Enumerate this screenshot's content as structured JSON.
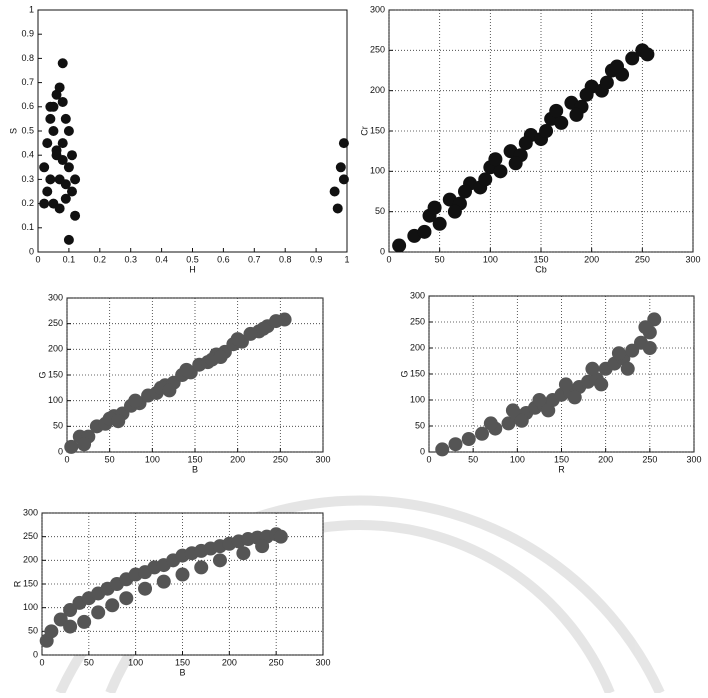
{
  "chart_data": [
    {
      "type": "scatter",
      "xlabel": "H",
      "ylabel": "S",
      "xlim": [
        0,
        1
      ],
      "ylim": [
        0,
        1
      ],
      "xticks": [
        0,
        0.1,
        0.2,
        0.3,
        0.4,
        0.5,
        0.6,
        0.7,
        0.8,
        0.9,
        1
      ],
      "yticks": [
        0,
        0.1,
        0.2,
        0.3,
        0.4,
        0.5,
        0.6,
        0.7,
        0.8,
        0.9,
        1
      ],
      "grid": false,
      "series": [
        {
          "color": "#111111",
          "x": [
            0.02,
            0.03,
            0.04,
            0.05,
            0.06,
            0.07,
            0.08,
            0.09,
            0.1,
            0.11,
            0.12,
            0.03,
            0.05,
            0.07,
            0.09,
            0.11,
            0.04,
            0.06,
            0.08,
            0.1,
            0.05,
            0.07,
            0.09,
            0.08,
            0.1,
            0.96,
            0.98,
            0.99,
            0.97,
            0.99,
            0.06,
            0.04,
            0.08,
            0.02,
            0.12
          ],
          "values": [
            0.35,
            0.45,
            0.55,
            0.6,
            0.65,
            0.68,
            0.62,
            0.55,
            0.5,
            0.4,
            0.3,
            0.25,
            0.2,
            0.18,
            0.22,
            0.25,
            0.3,
            0.4,
            0.45,
            0.35,
            0.5,
            0.3,
            0.28,
            0.78,
            0.05,
            0.25,
            0.35,
            0.45,
            0.18,
            0.3,
            0.42,
            0.6,
            0.38,
            0.2,
            0.15
          ]
        }
      ]
    },
    {
      "type": "scatter",
      "xlabel": "Cb",
      "ylabel": "Cr",
      "xlim": [
        0,
        300
      ],
      "ylim": [
        0,
        300
      ],
      "xticks": [
        0,
        50,
        100,
        150,
        200,
        250,
        300
      ],
      "yticks": [
        0,
        50,
        100,
        150,
        200,
        250,
        300
      ],
      "grid": true,
      "series": [
        {
          "color": "#111111",
          "x": [
            10,
            25,
            40,
            50,
            60,
            70,
            80,
            90,
            100,
            110,
            120,
            130,
            140,
            150,
            160,
            170,
            180,
            190,
            200,
            210,
            220,
            230,
            240,
            250,
            255,
            35,
            45,
            75,
            105,
            135,
            165,
            195,
            225,
            65,
            95,
            125,
            155,
            185,
            215
          ],
          "values": [
            8,
            20,
            45,
            35,
            65,
            60,
            85,
            80,
            105,
            100,
            125,
            120,
            145,
            140,
            165,
            160,
            185,
            180,
            205,
            200,
            225,
            220,
            240,
            250,
            245,
            25,
            55,
            75,
            115,
            135,
            175,
            195,
            230,
            50,
            90,
            110,
            150,
            170,
            210
          ]
        }
      ]
    },
    {
      "type": "scatter",
      "xlabel": "B",
      "ylabel": "G",
      "xlim": [
        0,
        300
      ],
      "ylim": [
        0,
        300
      ],
      "xticks": [
        0,
        50,
        100,
        150,
        200,
        250,
        300
      ],
      "yticks": [
        0,
        50,
        100,
        150,
        200,
        250,
        300
      ],
      "grid": true,
      "series": [
        {
          "color": "#555555",
          "x": [
            5,
            15,
            25,
            35,
            45,
            55,
            65,
            75,
            85,
            95,
            105,
            115,
            125,
            135,
            145,
            155,
            165,
            175,
            185,
            195,
            205,
            215,
            225,
            235,
            245,
            255,
            20,
            50,
            80,
            110,
            140,
            170,
            200,
            230,
            60,
            120,
            180
          ],
          "values": [
            10,
            30,
            30,
            50,
            55,
            70,
            75,
            90,
            95,
            110,
            115,
            130,
            135,
            150,
            155,
            170,
            175,
            190,
            195,
            210,
            215,
            230,
            235,
            245,
            255,
            258,
            15,
            65,
            100,
            125,
            160,
            180,
            220,
            240,
            60,
            120,
            185
          ]
        }
      ]
    },
    {
      "type": "scatter",
      "xlabel": "R",
      "ylabel": "G",
      "xlim": [
        0,
        300
      ],
      "ylim": [
        0,
        300
      ],
      "xticks": [
        0,
        50,
        100,
        150,
        200,
        250,
        300
      ],
      "yticks": [
        0,
        50,
        100,
        150,
        200,
        250,
        300
      ],
      "grid": true,
      "series": [
        {
          "color": "#555555",
          "x": [
            15,
            30,
            45,
            60,
            75,
            90,
            100,
            110,
            120,
            130,
            140,
            150,
            160,
            170,
            180,
            190,
            200,
            210,
            220,
            230,
            240,
            250,
            255,
            70,
            95,
            125,
            155,
            185,
            215,
            245,
            105,
            135,
            165,
            195,
            225,
            250
          ],
          "values": [
            5,
            15,
            25,
            35,
            45,
            55,
            70,
            75,
            85,
            90,
            100,
            110,
            115,
            125,
            135,
            140,
            160,
            170,
            180,
            195,
            210,
            230,
            255,
            55,
            80,
            100,
            130,
            160,
            190,
            240,
            60,
            80,
            105,
            130,
            160,
            200
          ]
        }
      ]
    },
    {
      "type": "scatter",
      "xlabel": "B",
      "ylabel": "R",
      "xlim": [
        0,
        300
      ],
      "ylim": [
        0,
        300
      ],
      "xticks": [
        0,
        50,
        100,
        150,
        200,
        250,
        300
      ],
      "yticks": [
        0,
        50,
        100,
        150,
        200,
        250,
        300
      ],
      "grid": true,
      "series": [
        {
          "color": "#555555",
          "x": [
            5,
            10,
            20,
            30,
            40,
            50,
            60,
            70,
            80,
            90,
            100,
            110,
            120,
            130,
            140,
            150,
            160,
            170,
            180,
            190,
            200,
            210,
            220,
            230,
            240,
            250,
            255,
            30,
            45,
            60,
            75,
            90,
            110,
            130,
            150,
            170,
            190,
            215,
            235
          ],
          "values": [
            30,
            50,
            75,
            95,
            110,
            120,
            130,
            140,
            150,
            160,
            170,
            175,
            185,
            190,
            200,
            210,
            215,
            220,
            225,
            230,
            235,
            240,
            245,
            248,
            250,
            255,
            250,
            60,
            70,
            90,
            105,
            120,
            140,
            155,
            170,
            185,
            200,
            215,
            230
          ]
        }
      ]
    }
  ]
}
